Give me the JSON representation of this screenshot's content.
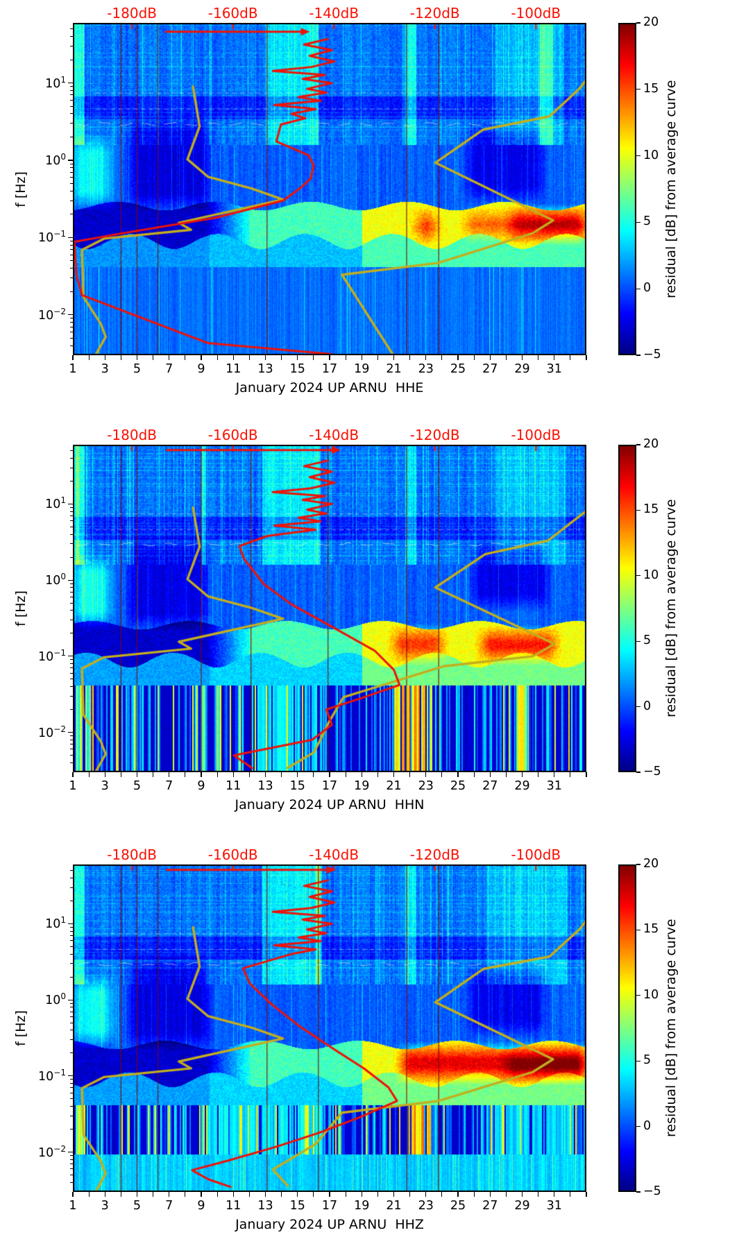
{
  "chart_data": {
    "type": "heatmap",
    "description": "Three stacked spectrogram panels of residual power [dB] from an average PSD curve for station UP.ARNU, channels HHE, HHN, HHZ, January 2024. Jet colormap heatmaps (days vs frequency, log scale). Overlaid red curve = mean PSD read on the red top dB axis; dark-yellow curves = high/low noise model reference curves on the same dB axis.",
    "x_axis": {
      "range_days": [
        1,
        33
      ],
      "ticks": [
        {
          "value": 1,
          "label": "1"
        },
        {
          "value": 3,
          "label": "3"
        },
        {
          "value": 5,
          "label": "5"
        },
        {
          "value": 7,
          "label": "7"
        },
        {
          "value": 9,
          "label": "9"
        },
        {
          "value": 11,
          "label": "11"
        },
        {
          "value": 13,
          "label": "13"
        },
        {
          "value": 15,
          "label": "15"
        },
        {
          "value": 17,
          "label": "17"
        },
        {
          "value": 19,
          "label": "19"
        },
        {
          "value": 21,
          "label": "21"
        },
        {
          "value": 23,
          "label": "23"
        },
        {
          "value": 25,
          "label": "25"
        },
        {
          "value": 27,
          "label": "27"
        },
        {
          "value": 29,
          "label": "29"
        },
        {
          "value": 31,
          "label": "31"
        }
      ]
    },
    "y_axis": {
      "label": "f [Hz]",
      "scale": "log",
      "range_hz": [
        0.003,
        60
      ],
      "major_ticks": [
        {
          "value": 10,
          "base": "10",
          "exp": "1"
        },
        {
          "value": 1,
          "base": "10",
          "exp": "0"
        },
        {
          "value": 0.1,
          "base": "10",
          "exp": "−1"
        },
        {
          "value": 0.01,
          "base": "10",
          "exp": "−2"
        }
      ]
    },
    "top_axis": {
      "unit": "dB",
      "range_db": [
        -191.7,
        -90.0
      ],
      "ticks": [
        {
          "value": -180,
          "label": "-180dB"
        },
        {
          "value": -160,
          "label": "-160dB"
        },
        {
          "value": -140,
          "label": "-140dB"
        },
        {
          "value": -120,
          "label": "-120dB"
        },
        {
          "value": -100,
          "label": "-100dB"
        }
      ]
    },
    "colorbar": {
      "label": "residual [dB] from average curve",
      "min": -5,
      "max": 20,
      "ticks": [
        {
          "value": 20,
          "label": "20"
        },
        {
          "value": 15,
          "label": "15"
        },
        {
          "value": 10,
          "label": "10"
        },
        {
          "value": 5,
          "label": "5"
        },
        {
          "value": 0,
          "label": "0"
        },
        {
          "value": -5,
          "label": "−5"
        }
      ],
      "colormap": "jet"
    },
    "colors": {
      "mean_curve": "#ee1208",
      "model_curve": "#c2ae1f",
      "top_axis": "#fa0f00",
      "axis": "#000000",
      "background": "#ffffff"
    },
    "noise_models": {
      "low_noise_model": [
        [
          -167.9,
          9
        ],
        [
          -166.6,
          2.75
        ],
        [
          -169,
          1.03
        ],
        [
          -164.9,
          0.61
        ],
        [
          -156.2,
          0.43
        ],
        [
          -150.1,
          0.31
        ],
        [
          -170.7,
          0.155
        ],
        [
          -168.3,
          0.126
        ],
        [
          -185.5,
          0.097
        ],
        [
          -189.9,
          0.069
        ],
        [
          -189.6,
          0.017
        ],
        [
          -186.2,
          0.0077
        ],
        [
          -185.2,
          0.0052
        ],
        [
          -187.1,
          0.0031
        ]
      ]
    },
    "panels": [
      {
        "channel": "HHE",
        "xlabel": "January 2024 UP ARNU  HHE",
        "series": {
          "top_arrow": {
            "db": [
              -173.3,
              -146.0
            ],
            "f": 46
          },
          "mean_psd": [
            [
              -141.2,
              37.1
            ],
            [
              -145.9,
              31.4
            ],
            [
              -140.4,
              26.6
            ],
            [
              -144.8,
              22.5
            ],
            [
              -139.9,
              19
            ],
            [
              -144.5,
              16.1
            ],
            [
              -152.1,
              14.3
            ],
            [
              -141.8,
              12.7
            ],
            [
              -146.2,
              11.3
            ],
            [
              -140.4,
              10
            ],
            [
              -145.3,
              8.4
            ],
            [
              -141.5,
              7.5
            ],
            [
              -147,
              6.6
            ],
            [
              -142.6,
              5.9
            ],
            [
              -151.8,
              5.2
            ],
            [
              -143.6,
              4.6
            ],
            [
              -148.4,
              4
            ],
            [
              -145.7,
              3.5
            ],
            [
              -150.5,
              2.9
            ],
            [
              -151.4,
              1.75
            ],
            [
              -145,
              1.16
            ],
            [
              -144,
              0.85
            ],
            [
              -144.6,
              0.58
            ],
            [
              -146.8,
              0.43
            ],
            [
              -150.1,
              0.3
            ],
            [
              -163.5,
              0.18
            ],
            [
              -181.4,
              0.115
            ],
            [
              -191.4,
              0.088
            ],
            [
              -191,
              0.033
            ],
            [
              -189.9,
              0.018
            ],
            [
              -164.9,
              0.0043
            ],
            [
              -140.4,
              0.0031
            ]
          ],
          "high_noise_model": [
            [
              -90,
              11
            ],
            [
              -91.4,
              8.4
            ],
            [
              -97.3,
              3.7
            ],
            [
              -110.4,
              2.5
            ],
            [
              -119.9,
              0.93
            ],
            [
              -96.6,
              0.167
            ],
            [
              -100.7,
              0.113
            ],
            [
              -119.3,
              0.047
            ],
            [
              -138.4,
              0.033
            ],
            [
              -128.5,
              0.0032
            ]
          ]
        },
        "features": {
          "cal_line_days": [
            4.0,
            5.0,
            6.3,
            13.1,
            21.8,
            23.8
          ],
          "upper_boosts": [
            [
              1.0,
              1.7,
              4
            ],
            [
              13.0,
              16.3,
              3
            ],
            [
              21.7,
              22.4,
              3.5
            ],
            [
              27.3,
              31.6,
              2
            ],
            [
              30.1,
              30.9,
              3
            ]
          ],
          "dark_blobs": [
            [
              4.6,
              9.4,
              0.28,
              3.2,
              -3.0
            ],
            [
              25.6,
              30.2,
              0.35,
              2.6,
              -2.7
            ]
          ],
          "bright_blobs": [
            [
              1.0,
              3.3,
              0.3,
              1.7,
              4.0
            ]
          ],
          "micro_blobs": [
            [
              28.3,
              32.9,
              0.105,
              0.21,
              8
            ],
            [
              22.4,
              23.6,
              0.1,
              0.2,
              5
            ],
            [
              25.5,
              28.3,
              0.11,
              0.2,
              4
            ]
          ],
          "low_style": "streaky",
          "stripe_boosts": [],
          "bottom_band": false
        }
      },
      {
        "channel": "HHN",
        "xlabel": "January 2024 UP ARNU  HHN",
        "series": {
          "top_arrow": {
            "db": [
              -173.1,
              -139.9
            ],
            "f": 51
          },
          "mean_psd": [
            [
              -141.2,
              37.1
            ],
            [
              -145.9,
              31.4
            ],
            [
              -140.4,
              26.6
            ],
            [
              -144.8,
              22.5
            ],
            [
              -139.9,
              19
            ],
            [
              -144.5,
              16.1
            ],
            [
              -152.1,
              14.3
            ],
            [
              -141.8,
              12.7
            ],
            [
              -146.2,
              11.3
            ],
            [
              -140.4,
              10
            ],
            [
              -145.3,
              8.4
            ],
            [
              -141.5,
              7.5
            ],
            [
              -147,
              6.6
            ],
            [
              -142.6,
              5.9
            ],
            [
              -151.8,
              5.2
            ],
            [
              -143.6,
              4.6
            ],
            [
              -153.2,
              3.8
            ],
            [
              -158.7,
              2.8
            ],
            [
              -157.8,
              1.9
            ],
            [
              -153.9,
              0.89
            ],
            [
              -148.4,
              0.48
            ],
            [
              -140.2,
              0.24
            ],
            [
              -131.9,
              0.118
            ],
            [
              -128.1,
              0.066
            ],
            [
              -127,
              0.042
            ],
            [
              -134.7,
              0.028
            ],
            [
              -141.5,
              0.02
            ],
            [
              -140.4,
              0.0126
            ],
            [
              -144.3,
              0.008
            ],
            [
              -159.8,
              0.005
            ],
            [
              -156.2,
              0.0034
            ]
          ],
          "high_noise_model": [
            [
              -90,
              8.1
            ],
            [
              -97.6,
              3.3
            ],
            [
              -110,
              2.2
            ],
            [
              -119.9,
              0.8
            ],
            [
              -96.3,
              0.145
            ],
            [
              -100.6,
              0.1
            ],
            [
              -118.2,
              0.074
            ],
            [
              -138.1,
              0.029
            ],
            [
              -140.9,
              0.014
            ],
            [
              -143.9,
              0.0055
            ],
            [
              -149.2,
              0.0034
            ]
          ]
        },
        "features": {
          "cal_line_days": [
            4.0,
            5.0,
            9.0,
            12.1,
            16.9,
            21.8,
            23.8
          ],
          "upper_boosts": [
            [
              1.0,
              1.7,
              4
            ],
            [
              12.8,
              16.4,
              3
            ],
            [
              21.7,
              22.4,
              3
            ],
            [
              27.3,
              31.6,
              2
            ],
            [
              9.0,
              9.3,
              2.5
            ]
          ],
          "dark_blobs": [
            [
              4.6,
              9.4,
              0.28,
              3.2,
              -3.0
            ],
            [
              26.0,
              30.5,
              0.5,
              3,
              -2.8
            ]
          ],
          "bright_blobs": [
            [
              1.0,
              3.3,
              0.3,
              1.7,
              4.2
            ]
          ],
          "micro_blobs": [
            [
              26.5,
              31,
              0.1,
              0.2,
              6
            ],
            [
              21,
              24,
              0.1,
              0.21,
              5
            ]
          ],
          "low_style": "striped",
          "stripe_boosts": [
            [
              21.0,
              23.4,
              14
            ],
            [
              28.6,
              29.4,
              11
            ],
            [
              12.5,
              16.5,
              5
            ],
            [
              1.05,
              1.6,
              8
            ],
            [
              9.0,
              9.2,
              9
            ]
          ],
          "bottom_band": false
        }
      },
      {
        "channel": "HHZ",
        "xlabel": "January 2024 UP ARNU  HHZ",
        "series": {
          "top_arrow": {
            "db": [
              -173.1,
              -140.9
            ],
            "f": 51
          },
          "mean_psd": [
            [
              -141.2,
              37.1
            ],
            [
              -145.9,
              31.4
            ],
            [
              -140.4,
              26.6
            ],
            [
              -144.8,
              22.5
            ],
            [
              -139.9,
              19
            ],
            [
              -144.5,
              16.1
            ],
            [
              -152.1,
              14.3
            ],
            [
              -141.8,
              12.7
            ],
            [
              -146.2,
              11.3
            ],
            [
              -140.4,
              10
            ],
            [
              -145.3,
              8.4
            ],
            [
              -141.5,
              7.5
            ],
            [
              -147,
              6.6
            ],
            [
              -142.6,
              5.9
            ],
            [
              -151.8,
              5.2
            ],
            [
              -143.6,
              4.6
            ],
            [
              -148.4,
              4
            ],
            [
              -158,
              2.6
            ],
            [
              -156.7,
              1.66
            ],
            [
              -152.5,
              0.89
            ],
            [
              -147,
              0.46
            ],
            [
              -140.2,
              0.23
            ],
            [
              -134,
              0.125
            ],
            [
              -129.2,
              0.071
            ],
            [
              -127.5,
              0.047
            ],
            [
              -134.7,
              0.029
            ],
            [
              -142.9,
              0.018
            ],
            [
              -151.2,
              0.0119
            ],
            [
              -160.8,
              0.0078
            ],
            [
              -168.1,
              0.0058
            ],
            [
              -164.9,
              0.0044
            ],
            [
              -160.5,
              0.0035
            ]
          ],
          "high_noise_model": [
            [
              -90,
              11
            ],
            [
              -91.4,
              8.4
            ],
            [
              -97.3,
              3.7
            ],
            [
              -110.4,
              2.55
            ],
            [
              -119.9,
              0.93
            ],
            [
              -96.6,
              0.166
            ],
            [
              -100.7,
              0.112
            ],
            [
              -119.3,
              0.047
            ],
            [
              -138.4,
              0.033
            ],
            [
              -143.6,
              0.0128
            ],
            [
              -152.1,
              0.0059
            ],
            [
              -149.1,
              0.0036
            ]
          ]
        },
        "features": {
          "cal_line_days": [
            4.0,
            5.0,
            6.3,
            13.1,
            16.3,
            21.8,
            23.8
          ],
          "upper_boosts": [
            [
              1.0,
              1.7,
              4
            ],
            [
              12.8,
              16.4,
              3
            ],
            [
              21.7,
              22.4,
              3
            ],
            [
              26.8,
              31.8,
              2
            ],
            [
              16.1,
              16.5,
              3
            ]
          ],
          "dark_blobs": [
            [
              4.6,
              9.4,
              0.28,
              3.2,
              -3.0
            ],
            [
              25.8,
              30.3,
              0.4,
              2.6,
              -2.8
            ]
          ],
          "bright_blobs": [
            [
              1.0,
              3.4,
              0.3,
              1.7,
              4.2
            ]
          ],
          "micro_blobs": [
            [
              21.5,
              32.9,
              0.1,
              0.22,
              7
            ],
            [
              28.0,
              32.9,
              0.1,
              0.2,
              3
            ]
          ],
          "low_style": "striped",
          "stripe_boosts": [
            [
              1.05,
              1.7,
              9
            ],
            [
              9.0,
              16.5,
              5
            ],
            [
              21.9,
              23.3,
              14
            ],
            [
              27.0,
              32.2,
              4
            ]
          ],
          "bottom_band": true
        }
      }
    ]
  }
}
